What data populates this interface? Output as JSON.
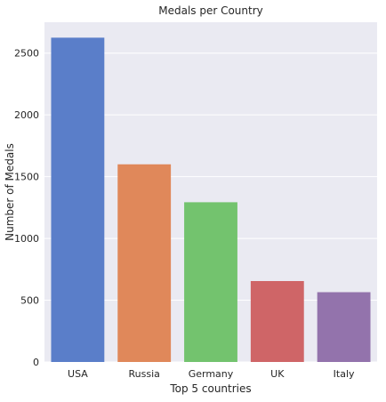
{
  "chart_data": {
    "type": "bar",
    "title": "Medals per Country",
    "xlabel": "Top 5 countries",
    "ylabel": "Number of Medals",
    "categories": [
      "USA",
      "Russia",
      "Germany",
      "UK",
      "Italy"
    ],
    "values": [
      2625,
      1600,
      1293,
      655,
      565
    ],
    "colors": [
      "#5a7ec9",
      "#e0885a",
      "#73c36e",
      "#cf6567",
      "#9373ac"
    ],
    "ylim": [
      0,
      2750
    ],
    "yticks": [
      0,
      500,
      1000,
      1500,
      2000,
      2500
    ],
    "grid": true,
    "plot_background": "#eaeaf2",
    "grid_color": "#ffffff"
  }
}
